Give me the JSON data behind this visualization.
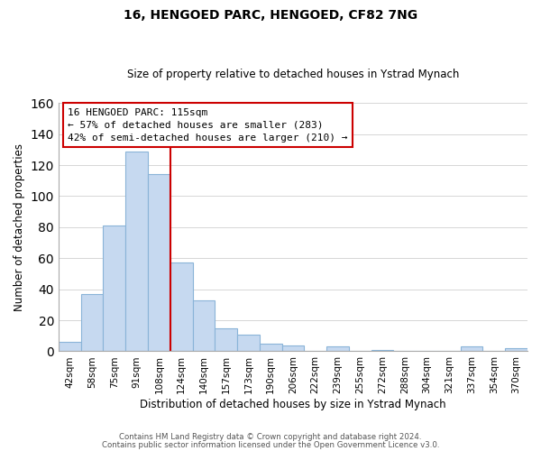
{
  "title": "16, HENGOED PARC, HENGOED, CF82 7NG",
  "subtitle": "Size of property relative to detached houses in Ystrad Mynach",
  "xlabel": "Distribution of detached houses by size in Ystrad Mynach",
  "ylabel": "Number of detached properties",
  "bin_labels": [
    "42sqm",
    "58sqm",
    "75sqm",
    "91sqm",
    "108sqm",
    "124sqm",
    "140sqm",
    "157sqm",
    "173sqm",
    "190sqm",
    "206sqm",
    "222sqm",
    "239sqm",
    "255sqm",
    "272sqm",
    "288sqm",
    "304sqm",
    "321sqm",
    "337sqm",
    "354sqm",
    "370sqm"
  ],
  "bar_heights": [
    6,
    37,
    81,
    129,
    114,
    57,
    33,
    15,
    11,
    5,
    4,
    0,
    3,
    0,
    1,
    0,
    0,
    0,
    3,
    0,
    2
  ],
  "bar_color": "#c6d9f0",
  "bar_edge_color": "#8ab4d8",
  "vline_color": "#cc0000",
  "vline_x_idx": 4.5,
  "ylim": [
    0,
    160
  ],
  "yticks": [
    0,
    20,
    40,
    60,
    80,
    100,
    120,
    140,
    160
  ],
  "annotation_title": "16 HENGOED PARC: 115sqm",
  "annotation_line1": "← 57% of detached houses are smaller (283)",
  "annotation_line2": "42% of semi-detached houses are larger (210) →",
  "annotation_box_edge": "#cc0000",
  "footer_line1": "Contains HM Land Registry data © Crown copyright and database right 2024.",
  "footer_line2": "Contains public sector information licensed under the Open Government Licence v3.0."
}
